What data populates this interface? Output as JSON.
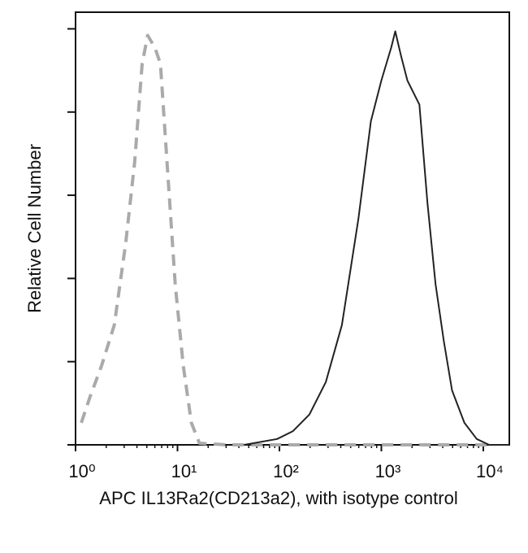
{
  "chart_data": {
    "type": "line",
    "x_label": "APC IL13Ra2(CD213a2), with isotype control",
    "y_label": "Relative Cell Number",
    "x_log": true,
    "xlim": [
      1,
      18000
    ],
    "xticks": [
      {
        "value": 1,
        "label": "10⁰"
      },
      {
        "value": 10,
        "label": "10¹"
      },
      {
        "value": 100,
        "label": "10²"
      },
      {
        "value": 1000,
        "label": "10³"
      },
      {
        "value": 10000,
        "label": "10⁴"
      }
    ],
    "ylim": [
      0,
      104
    ],
    "yticks": [
      0,
      20,
      40,
      60,
      80,
      100
    ],
    "series": [
      {
        "name": "isotype control",
        "color": "#aaaaaa",
        "dashed": true,
        "x": [
          1.14,
          1.37,
          1.8,
          2.4,
          3.1,
          3.8,
          4.5,
          5.1,
          6.0,
          6.8,
          7.9,
          9.5,
          11.4,
          13.7,
          16.4,
          31,
          285,
          11400
        ],
        "values": [
          5.3,
          11.2,
          19,
          28.8,
          48.4,
          68,
          91.6,
          98.4,
          95.5,
          91.6,
          68,
          38.6,
          19,
          5.3,
          0.4,
          0,
          0,
          0
        ]
      },
      {
        "name": "IL13Ra2",
        "color": "#222222",
        "dashed": false,
        "x": [
          45,
          95,
          136,
          197,
          285,
          410,
          595,
          790,
          1000,
          1250,
          1370,
          1560,
          1800,
          2360,
          2830,
          3400,
          4100,
          4940,
          6530,
          8630,
          11400,
          18000
        ],
        "values": [
          0,
          1.4,
          3.3,
          7.3,
          15.1,
          28.8,
          54.3,
          77.8,
          87.6,
          95.5,
          99.4,
          93.5,
          87.6,
          81.8,
          58.2,
          38.6,
          24.9,
          13.1,
          5.3,
          1.4,
          0,
          0
        ]
      }
    ]
  }
}
